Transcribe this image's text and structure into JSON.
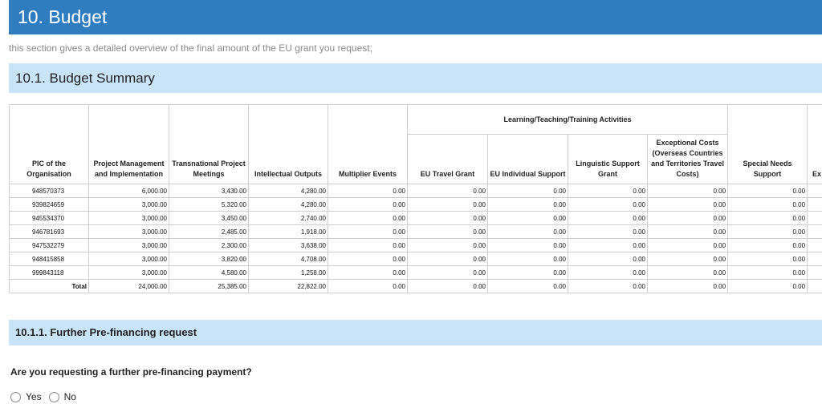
{
  "section": {
    "title": "10. Budget",
    "intro": "this section gives a detailed overview of the final amount of the EU grant you request;"
  },
  "summary": {
    "title": "10.1. Budget Summary"
  },
  "table": {
    "headers": {
      "pic": "PIC of the Organisation",
      "pm": "Project Management and Implementation",
      "tpm": "Transnational Project Meetings",
      "io": "Intellectual Outputs",
      "me": "Multiplier Events",
      "ltt_group": "Learning/Teaching/Training Activities",
      "travel": "EU Travel Grant",
      "indiv": "EU Individual Support",
      "ling": "Linguistic Support Grant",
      "except": "Exceptional Costs (Overseas Countries and Territories Travel Costs)",
      "special": "Special Needs Support",
      "extra": "Ex"
    },
    "rows": [
      {
        "pic": "948570373",
        "pm": "6,000.00",
        "tpm": "3,430.00",
        "io": "4,280.00",
        "me": "0.00",
        "travel": "0.00",
        "indiv": "0.00",
        "ling": "0.00",
        "except": "0.00",
        "special": "0.00"
      },
      {
        "pic": "939824659",
        "pm": "3,000.00",
        "tpm": "5,320.00",
        "io": "4,280.00",
        "me": "0.00",
        "travel": "0.00",
        "indiv": "0.00",
        "ling": "0.00",
        "except": "0.00",
        "special": "0.00"
      },
      {
        "pic": "945534370",
        "pm": "3,000.00",
        "tpm": "3,450.00",
        "io": "2,740.00",
        "me": "0.00",
        "travel": "0.00",
        "indiv": "0.00",
        "ling": "0.00",
        "except": "0.00",
        "special": "0.00"
      },
      {
        "pic": "946781693",
        "pm": "3,000.00",
        "tpm": "2,485.00",
        "io": "1,918.00",
        "me": "0.00",
        "travel": "0.00",
        "indiv": "0.00",
        "ling": "0.00",
        "except": "0.00",
        "special": "0.00"
      },
      {
        "pic": "947532279",
        "pm": "3,000.00",
        "tpm": "2,300.00",
        "io": "3,638.00",
        "me": "0.00",
        "travel": "0.00",
        "indiv": "0.00",
        "ling": "0.00",
        "except": "0.00",
        "special": "0.00"
      },
      {
        "pic": "948415858",
        "pm": "3,000.00",
        "tpm": "3,820.00",
        "io": "4,708.00",
        "me": "0.00",
        "travel": "0.00",
        "indiv": "0.00",
        "ling": "0.00",
        "except": "0.00",
        "special": "0.00"
      },
      {
        "pic": "999843118",
        "pm": "3,000.00",
        "tpm": "4,580.00",
        "io": "1,258.00",
        "me": "0.00",
        "travel": "0.00",
        "indiv": "0.00",
        "ling": "0.00",
        "except": "0.00",
        "special": "0.00"
      }
    ],
    "total": {
      "label": "Total",
      "pm": "24,000.00",
      "tpm": "25,385.00",
      "io": "22,822.00",
      "me": "0.00",
      "travel": "0.00",
      "indiv": "0.00",
      "ling": "0.00",
      "except": "0.00",
      "special": "0.00"
    }
  },
  "prefinancing": {
    "title": "10.1.1. Further Pre-financing request",
    "question": "Are you requesting a further pre-financing payment?",
    "options": [
      "Yes",
      "No"
    ]
  }
}
